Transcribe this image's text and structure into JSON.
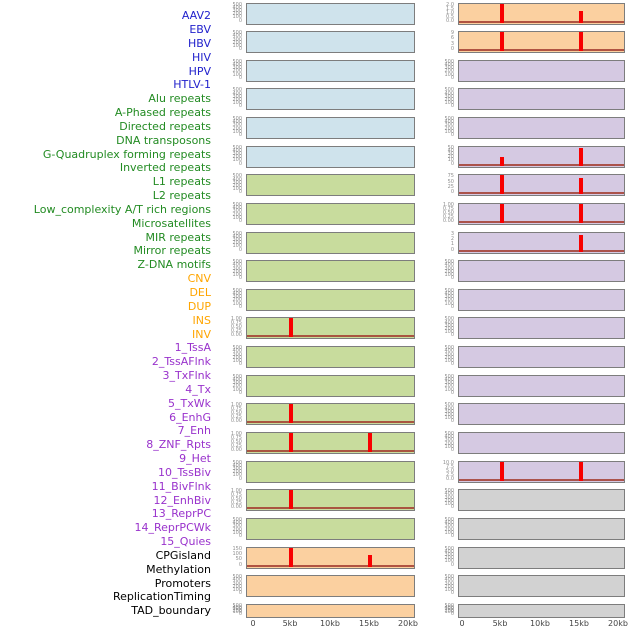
{
  "palette": {
    "fills": {
      "blue": "#cfe3ec",
      "green": "#c8dc9d",
      "orange": "#fbd0a0",
      "purple": "#d5c9e2",
      "gray": "#d2d2d2"
    },
    "label_colors": {
      "virus": "#2222cc",
      "repeat": "#228b22",
      "sv": "#ffa500",
      "chromatin": "#9932cc",
      "other": "#000000"
    },
    "spike": "#f80000",
    "baseline": "#a33d30",
    "tick_text": "#8f8f8f",
    "axis_text": "#444444",
    "box_border": "#7d7d7d"
  },
  "chart_data": {
    "type": "small_multiples_spike_tracks",
    "columns": 2,
    "x_axis": {
      "ticks": [
        "0",
        "5kb",
        "10kb",
        "15kb",
        "20kb"
      ],
      "range_kb": [
        0,
        20
      ]
    },
    "track_labels": [
      {
        "text": "AAV2",
        "group": "virus"
      },
      {
        "text": "EBV",
        "group": "virus"
      },
      {
        "text": "HBV",
        "group": "virus"
      },
      {
        "text": "HIV",
        "group": "virus"
      },
      {
        "text": "HPV",
        "group": "virus"
      },
      {
        "text": "HTLV-1",
        "group": "virus"
      },
      {
        "text": "Alu repeats",
        "group": "repeat"
      },
      {
        "text": "A-Phased repeats",
        "group": "repeat"
      },
      {
        "text": "Directed repeats",
        "group": "repeat"
      },
      {
        "text": "DNA transposons",
        "group": "repeat"
      },
      {
        "text": "G-Quadruplex forming repeats",
        "group": "repeat"
      },
      {
        "text": "Inverted repeats",
        "group": "repeat"
      },
      {
        "text": "L1 repeats",
        "group": "repeat"
      },
      {
        "text": "L2 repeats",
        "group": "repeat"
      },
      {
        "text": "Low_complexity A/T rich regions",
        "group": "repeat"
      },
      {
        "text": "Microsatellites",
        "group": "repeat"
      },
      {
        "text": "MIR repeats",
        "group": "repeat"
      },
      {
        "text": "Mirror repeats",
        "group": "repeat"
      },
      {
        "text": "Z-DNA motifs",
        "group": "repeat"
      },
      {
        "text": "CNV",
        "group": "sv"
      },
      {
        "text": "DEL",
        "group": "sv"
      },
      {
        "text": "DUP",
        "group": "sv"
      },
      {
        "text": "INS",
        "group": "sv"
      },
      {
        "text": "INV",
        "group": "sv"
      },
      {
        "text": "1_TssA",
        "group": "chromatin"
      },
      {
        "text": "2_TssAFlnk",
        "group": "chromatin"
      },
      {
        "text": "3_TxFlnk",
        "group": "chromatin"
      },
      {
        "text": "4_Tx",
        "group": "chromatin"
      },
      {
        "text": "5_TxWk",
        "group": "chromatin"
      },
      {
        "text": "6_EnhG",
        "group": "chromatin"
      },
      {
        "text": "7_Enh",
        "group": "chromatin"
      },
      {
        "text": "8_ZNF_Rpts",
        "group": "chromatin"
      },
      {
        "text": "9_Het",
        "group": "chromatin"
      },
      {
        "text": "10_TssBiv",
        "group": "chromatin"
      },
      {
        "text": "11_BivFlnk",
        "group": "chromatin"
      },
      {
        "text": "12_EnhBiv",
        "group": "chromatin"
      },
      {
        "text": "13_ReprPC",
        "group": "chromatin"
      },
      {
        "text": "14_ReprPCWk",
        "group": "chromatin"
      },
      {
        "text": "15_Quies",
        "group": "chromatin"
      },
      {
        "text": "CPGisland",
        "group": "other"
      },
      {
        "text": "Methylation",
        "group": "other"
      },
      {
        "text": "Promoters",
        "group": "other"
      },
      {
        "text": "ReplicationTiming",
        "group": "other"
      },
      {
        "text": "TAD_boundary",
        "group": "other"
      }
    ],
    "left_plots": [
      {
        "fill": "blue",
        "yticks": [
          "500",
          "400",
          "300",
          "200",
          "100",
          "0"
        ],
        "spikes": [],
        "baseline": false
      },
      {
        "fill": "blue",
        "yticks": [
          "500",
          "400",
          "300",
          "200",
          "100",
          "0"
        ],
        "spikes": [],
        "baseline": false
      },
      {
        "fill": "blue",
        "yticks": [
          "500",
          "400",
          "300",
          "200",
          "100",
          "0"
        ],
        "spikes": [],
        "baseline": false
      },
      {
        "fill": "blue",
        "yticks": [
          "500",
          "400",
          "300",
          "200",
          "100",
          "0"
        ],
        "spikes": [],
        "baseline": false
      },
      {
        "fill": "blue",
        "yticks": [
          "500",
          "400",
          "300",
          "200",
          "100",
          "0"
        ],
        "spikes": [],
        "baseline": false
      },
      {
        "fill": "blue",
        "yticks": [
          "500",
          "400",
          "300",
          "200",
          "100",
          "0"
        ],
        "spikes": [],
        "baseline": false
      },
      {
        "fill": "green",
        "yticks": [
          "500",
          "400",
          "300",
          "200",
          "100",
          "0"
        ],
        "spikes": [],
        "baseline": false
      },
      {
        "fill": "green",
        "yticks": [
          "500",
          "400",
          "300",
          "200",
          "100",
          "0"
        ],
        "spikes": [],
        "baseline": false
      },
      {
        "fill": "green",
        "yticks": [
          "500",
          "400",
          "300",
          "200",
          "100",
          "0"
        ],
        "spikes": [],
        "baseline": false
      },
      {
        "fill": "green",
        "yticks": [
          "500",
          "400",
          "300",
          "200",
          "100",
          "0"
        ],
        "spikes": [],
        "baseline": false
      },
      {
        "fill": "green",
        "yticks": [
          "500",
          "400",
          "300",
          "200",
          "100",
          "0"
        ],
        "spikes": [],
        "baseline": false
      },
      {
        "fill": "green",
        "yticks": [
          "1.00",
          "0.75",
          "0.50",
          "0.25",
          "0.00"
        ],
        "spikes": [
          {
            "x_kb": 5,
            "value": 1.0,
            "frac": 1.0
          }
        ],
        "baseline": true
      },
      {
        "fill": "green",
        "yticks": [
          "500",
          "400",
          "300",
          "200",
          "100",
          "0"
        ],
        "spikes": [],
        "baseline": false
      },
      {
        "fill": "green",
        "yticks": [
          "500",
          "400",
          "300",
          "200",
          "100",
          "0"
        ],
        "spikes": [],
        "baseline": false
      },
      {
        "fill": "green",
        "yticks": [
          "1.00",
          "0.75",
          "0.50",
          "0.25",
          "0.00"
        ],
        "spikes": [
          {
            "x_kb": 5,
            "value": 1.0,
            "frac": 1.0
          }
        ],
        "baseline": true
      },
      {
        "fill": "green",
        "yticks": [
          "1.00",
          "0.75",
          "0.50",
          "0.25",
          "0.00"
        ],
        "spikes": [
          {
            "x_kb": 5,
            "value": 1.0,
            "frac": 1.0
          },
          {
            "x_kb": 15,
            "value": 1.0,
            "frac": 1.0
          }
        ],
        "baseline": true
      },
      {
        "fill": "green",
        "yticks": [
          "500",
          "400",
          "300",
          "200",
          "100",
          "0"
        ],
        "spikes": [],
        "baseline": false
      },
      {
        "fill": "green",
        "yticks": [
          "1.00",
          "0.75",
          "0.50",
          "0.25",
          "0.00"
        ],
        "spikes": [
          {
            "x_kb": 5,
            "value": 1.0,
            "frac": 1.0
          }
        ],
        "baseline": true
      },
      {
        "fill": "green",
        "yticks": [
          "500",
          "400",
          "300",
          "200",
          "100",
          "0"
        ],
        "spikes": [],
        "baseline": false
      },
      {
        "fill": "orange",
        "yticks": [
          "150",
          "100",
          "50",
          "0"
        ],
        "spikes": [
          {
            "x_kb": 5,
            "value": 165,
            "frac": 1.0
          },
          {
            "x_kb": 15,
            "value": 100,
            "frac": 0.62
          }
        ],
        "baseline": true
      },
      {
        "fill": "orange",
        "yticks": [
          "500",
          "400",
          "300",
          "200",
          "100",
          "0"
        ],
        "spikes": [],
        "baseline": false
      },
      {
        "fill": "orange",
        "yticks": [
          "500",
          "400",
          "300",
          "200",
          "100",
          "0"
        ],
        "spikes": [],
        "baseline": false
      }
    ],
    "right_plots": [
      {
        "fill": "orange",
        "yticks": [
          "2.0",
          "1.5",
          "1.0",
          "0.5",
          "0.0"
        ],
        "spikes": [
          {
            "x_kb": 5,
            "value": 2.0,
            "frac": 1.0
          },
          {
            "x_kb": 15,
            "value": 1.2,
            "frac": 0.6
          }
        ],
        "baseline": true
      },
      {
        "fill": "orange",
        "yticks": [
          "9",
          "6",
          "3",
          "0"
        ],
        "spikes": [
          {
            "x_kb": 5,
            "value": 9,
            "frac": 1.0
          },
          {
            "x_kb": 15,
            "value": 9,
            "frac": 1.0
          }
        ],
        "baseline": true
      },
      {
        "fill": "purple",
        "yticks": [
          "500",
          "400",
          "300",
          "200",
          "100",
          "0"
        ],
        "spikes": [],
        "baseline": false
      },
      {
        "fill": "purple",
        "yticks": [
          "500",
          "400",
          "300",
          "200",
          "100",
          "0"
        ],
        "spikes": [],
        "baseline": false
      },
      {
        "fill": "purple",
        "yticks": [
          "500",
          "400",
          "300",
          "200",
          "100",
          "0"
        ],
        "spikes": [],
        "baseline": false
      },
      {
        "fill": "purple",
        "yticks": [
          "50",
          "40",
          "30",
          "20",
          "10",
          "0"
        ],
        "spikes": [
          {
            "x_kb": 5,
            "value": 22,
            "frac": 0.45
          },
          {
            "x_kb": 15,
            "value": 47,
            "frac": 0.94
          }
        ],
        "baseline": true
      },
      {
        "fill": "purple",
        "yticks": [
          "75",
          "50",
          "25",
          "0"
        ],
        "spikes": [
          {
            "x_kb": 5,
            "value": 78,
            "frac": 1.0
          },
          {
            "x_kb": 15,
            "value": 65,
            "frac": 0.85
          }
        ],
        "baseline": true
      },
      {
        "fill": "purple",
        "yticks": [
          "1.00",
          "0.75",
          "0.50",
          "0.25",
          "0.00"
        ],
        "spikes": [
          {
            "x_kb": 5,
            "value": 1.0,
            "frac": 1.0
          },
          {
            "x_kb": 15,
            "value": 1.0,
            "frac": 1.0
          }
        ],
        "baseline": true
      },
      {
        "fill": "purple",
        "yticks": [
          "3",
          "2",
          "1",
          "0"
        ],
        "spikes": [
          {
            "x_kb": 15,
            "value": 2.6,
            "frac": 0.85
          }
        ],
        "baseline": true
      },
      {
        "fill": "purple",
        "yticks": [
          "500",
          "400",
          "300",
          "200",
          "100",
          "0"
        ],
        "spikes": [],
        "baseline": false
      },
      {
        "fill": "purple",
        "yticks": [
          "500",
          "400",
          "300",
          "200",
          "100",
          "0"
        ],
        "spikes": [],
        "baseline": false
      },
      {
        "fill": "purple",
        "yticks": [
          "500",
          "400",
          "300",
          "200",
          "100",
          "0"
        ],
        "spikes": [],
        "baseline": false
      },
      {
        "fill": "purple",
        "yticks": [
          "500",
          "400",
          "300",
          "200",
          "100",
          "0"
        ],
        "spikes": [],
        "baseline": false
      },
      {
        "fill": "purple",
        "yticks": [
          "500",
          "400",
          "300",
          "200",
          "100",
          "0"
        ],
        "spikes": [],
        "baseline": false
      },
      {
        "fill": "purple",
        "yticks": [
          "500",
          "400",
          "300",
          "200",
          "100",
          "0"
        ],
        "spikes": [],
        "baseline": false
      },
      {
        "fill": "purple",
        "yticks": [
          "500",
          "400",
          "300",
          "200",
          "100",
          "0"
        ],
        "spikes": [],
        "baseline": false
      },
      {
        "fill": "purple",
        "yticks": [
          "10.0",
          "7.5",
          "5.0",
          "2.5",
          "0.0"
        ],
        "spikes": [
          {
            "x_kb": 5,
            "value": 10,
            "frac": 1.0
          },
          {
            "x_kb": 15,
            "value": 10,
            "frac": 1.0
          }
        ],
        "baseline": true
      },
      {
        "fill": "gray",
        "yticks": [
          "500",
          "400",
          "300",
          "200",
          "100",
          "0"
        ],
        "spikes": [],
        "baseline": false
      },
      {
        "fill": "gray",
        "yticks": [
          "500",
          "400",
          "300",
          "200",
          "100",
          "0"
        ],
        "spikes": [],
        "baseline": false
      },
      {
        "fill": "gray",
        "yticks": [
          "500",
          "400",
          "300",
          "200",
          "100",
          "0"
        ],
        "spikes": [],
        "baseline": false
      },
      {
        "fill": "gray",
        "yticks": [
          "500",
          "400",
          "300",
          "200",
          "100",
          "0"
        ],
        "spikes": [],
        "baseline": false
      },
      {
        "fill": "gray",
        "yticks": [
          "500",
          "400",
          "300",
          "200",
          "100",
          "0"
        ],
        "spikes": [],
        "baseline": false
      }
    ]
  }
}
